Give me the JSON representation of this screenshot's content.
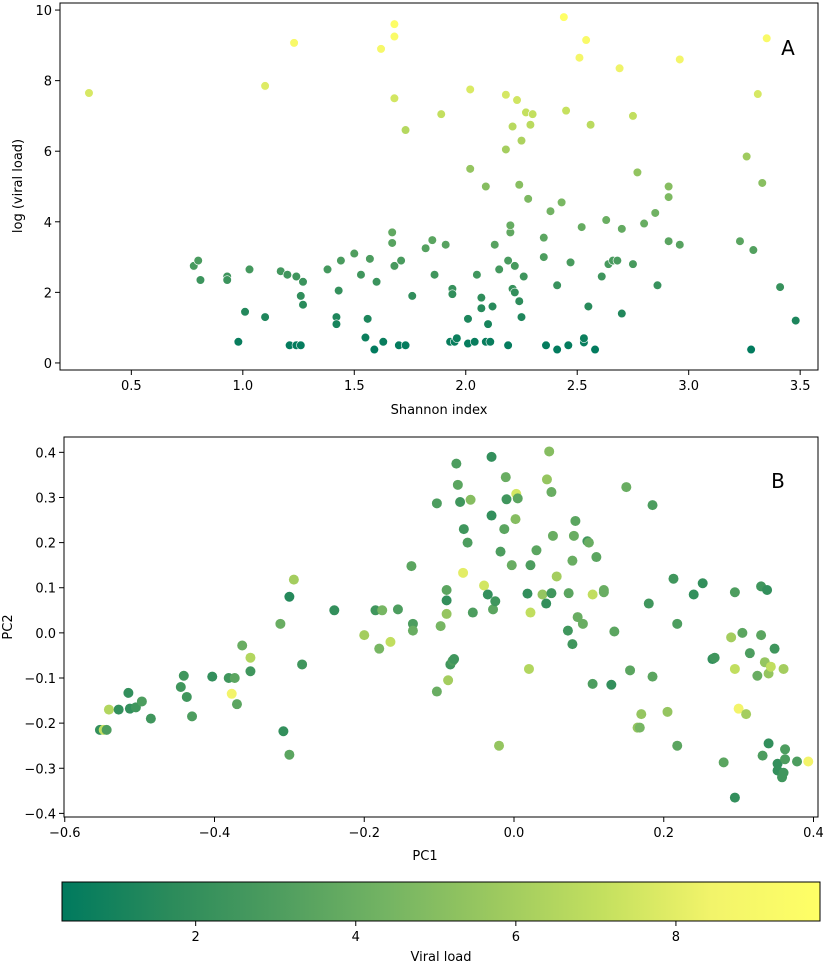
{
  "chart_data": [
    {
      "panel": "A",
      "type": "scatter",
      "xlabel": "Shannon index",
      "ylabel": "log (viral load)",
      "xlim": [
        0.18,
        3.58
      ],
      "ylim": [
        -0.2,
        10.2
      ],
      "xticks": [
        "0.5",
        "1.0",
        "1.5",
        "2.0",
        "2.5",
        "3.0",
        "3.5"
      ],
      "yticks": [
        "0",
        "2",
        "4",
        "6",
        "8",
        "10"
      ],
      "color_by": "y",
      "points": [
        [
          0.31,
          7.65
        ],
        [
          0.78,
          2.75
        ],
        [
          0.8,
          2.9
        ],
        [
          0.81,
          2.35
        ],
        [
          0.93,
          2.45
        ],
        [
          0.93,
          2.35
        ],
        [
          0.98,
          0.6
        ],
        [
          1.01,
          1.45
        ],
        [
          1.03,
          2.65
        ],
        [
          1.1,
          1.3
        ],
        [
          1.1,
          7.85
        ],
        [
          1.17,
          2.6
        ],
        [
          1.2,
          2.5
        ],
        [
          1.21,
          0.5
        ],
        [
          1.23,
          9.07
        ],
        [
          1.24,
          2.45
        ],
        [
          1.24,
          0.5
        ],
        [
          1.26,
          0.5
        ],
        [
          1.26,
          1.9
        ],
        [
          1.27,
          2.3
        ],
        [
          1.27,
          1.65
        ],
        [
          1.38,
          2.65
        ],
        [
          1.42,
          1.3
        ],
        [
          1.42,
          1.1
        ],
        [
          1.43,
          2.05
        ],
        [
          1.44,
          2.9
        ],
        [
          1.5,
          3.1
        ],
        [
          1.53,
          2.5
        ],
        [
          1.55,
          0.72
        ],
        [
          1.56,
          1.25
        ],
        [
          1.57,
          2.95
        ],
        [
          1.59,
          0.38
        ],
        [
          1.6,
          2.3
        ],
        [
          1.62,
          8.9
        ],
        [
          1.63,
          0.6
        ],
        [
          1.67,
          3.7
        ],
        [
          1.67,
          3.4
        ],
        [
          1.68,
          2.75
        ],
        [
          1.68,
          9.25
        ],
        [
          1.68,
          9.6
        ],
        [
          1.68,
          7.5
        ],
        [
          1.7,
          0.5
        ],
        [
          1.71,
          2.9
        ],
        [
          1.73,
          6.6
        ],
        [
          1.73,
          0.5
        ],
        [
          1.76,
          1.9
        ],
        [
          1.82,
          3.25
        ],
        [
          1.85,
          3.48
        ],
        [
          1.86,
          2.5
        ],
        [
          1.89,
          7.05
        ],
        [
          1.91,
          3.35
        ],
        [
          1.93,
          0.6
        ],
        [
          1.94,
          2.1
        ],
        [
          1.94,
          1.95
        ],
        [
          1.95,
          0.6
        ],
        [
          1.96,
          0.7
        ],
        [
          2.01,
          0.55
        ],
        [
          2.01,
          1.25
        ],
        [
          2.02,
          7.75
        ],
        [
          2.02,
          5.5
        ],
        [
          2.04,
          0.6
        ],
        [
          2.05,
          2.5
        ],
        [
          2.07,
          1.55
        ],
        [
          2.07,
          1.85
        ],
        [
          2.09,
          0.6
        ],
        [
          2.09,
          5.0
        ],
        [
          2.1,
          1.1
        ],
        [
          2.11,
          0.6
        ],
        [
          2.12,
          1.6
        ],
        [
          2.13,
          3.35
        ],
        [
          2.15,
          2.65
        ],
        [
          2.18,
          7.6
        ],
        [
          2.18,
          6.05
        ],
        [
          2.19,
          2.9
        ],
        [
          2.19,
          0.5
        ],
        [
          2.2,
          3.7
        ],
        [
          2.2,
          3.9
        ],
        [
          2.21,
          2.1
        ],
        [
          2.21,
          6.7
        ],
        [
          2.22,
          2.75
        ],
        [
          2.22,
          2.0
        ],
        [
          2.23,
          7.45
        ],
        [
          2.24,
          1.75
        ],
        [
          2.24,
          5.05
        ],
        [
          2.25,
          1.3
        ],
        [
          2.25,
          6.3
        ],
        [
          2.26,
          2.45
        ],
        [
          2.27,
          7.1
        ],
        [
          2.28,
          4.65
        ],
        [
          2.29,
          6.75
        ],
        [
          2.3,
          7.05
        ],
        [
          2.35,
          3.55
        ],
        [
          2.35,
          3.0
        ],
        [
          2.36,
          0.5
        ],
        [
          2.38,
          4.3
        ],
        [
          2.41,
          2.2
        ],
        [
          2.41,
          0.38
        ],
        [
          2.43,
          4.55
        ],
        [
          2.44,
          9.8
        ],
        [
          2.45,
          7.15
        ],
        [
          2.46,
          0.5
        ],
        [
          2.47,
          2.85
        ],
        [
          2.51,
          8.65
        ],
        [
          2.52,
          3.85
        ],
        [
          2.53,
          0.58
        ],
        [
          2.53,
          0.7
        ],
        [
          2.54,
          9.15
        ],
        [
          2.55,
          1.6
        ],
        [
          2.56,
          6.75
        ],
        [
          2.58,
          0.38
        ],
        [
          2.61,
          2.45
        ],
        [
          2.63,
          4.05
        ],
        [
          2.64,
          2.8
        ],
        [
          2.66,
          2.9
        ],
        [
          2.68,
          2.9
        ],
        [
          2.69,
          8.35
        ],
        [
          2.7,
          3.8
        ],
        [
          2.7,
          1.4
        ],
        [
          2.75,
          2.8
        ],
        [
          2.75,
          7.0
        ],
        [
          2.77,
          5.4
        ],
        [
          2.8,
          3.95
        ],
        [
          2.85,
          4.25
        ],
        [
          2.86,
          2.2
        ],
        [
          2.91,
          5.0
        ],
        [
          2.91,
          4.7
        ],
        [
          2.91,
          3.45
        ],
        [
          2.96,
          8.6
        ],
        [
          2.96,
          3.35
        ],
        [
          3.23,
          3.45
        ],
        [
          3.26,
          5.85
        ],
        [
          3.28,
          0.38
        ],
        [
          3.29,
          3.2
        ],
        [
          3.31,
          7.62
        ],
        [
          3.33,
          5.1
        ],
        [
          3.35,
          9.2
        ],
        [
          3.41,
          2.15
        ],
        [
          3.48,
          1.2
        ]
      ]
    },
    {
      "panel": "B",
      "type": "scatter",
      "xlabel": "PC1",
      "ylabel": "PC2",
      "xlim": [
        -0.601,
        0.406
      ],
      "ylim": [
        -0.408,
        0.434
      ],
      "xticks": [
        "−0.6",
        "−0.4",
        "−0.2",
        "0.0",
        "0.2",
        "0.4"
      ],
      "yticks": [
        "−0.4",
        "−0.3",
        "−0.2",
        "−0.1",
        "0.0",
        "0.1",
        "0.2",
        "0.3",
        "0.4"
      ],
      "points": [
        [
          -0.553,
          -0.215,
          2
        ],
        [
          -0.548,
          -0.215,
          7
        ],
        [
          -0.544,
          -0.215,
          3
        ],
        [
          -0.541,
          -0.17,
          6.5
        ],
        [
          -0.528,
          -0.17,
          2
        ],
        [
          -0.515,
          -0.133,
          2
        ],
        [
          -0.513,
          -0.168,
          2
        ],
        [
          -0.505,
          -0.165,
          2.5
        ],
        [
          -0.497,
          -0.152,
          3
        ],
        [
          -0.485,
          -0.19,
          2.5
        ],
        [
          -0.445,
          -0.12,
          2.5
        ],
        [
          -0.441,
          -0.095,
          2.5
        ],
        [
          -0.437,
          -0.142,
          2.5
        ],
        [
          -0.43,
          -0.185,
          3
        ],
        [
          -0.403,
          -0.097,
          2
        ],
        [
          -0.381,
          -0.1,
          2.5
        ],
        [
          -0.377,
          -0.135,
          8.5
        ],
        [
          -0.373,
          -0.1,
          3.5
        ],
        [
          -0.37,
          -0.158,
          3.5
        ],
        [
          -0.363,
          -0.028,
          4
        ],
        [
          -0.352,
          -0.055,
          6.5
        ],
        [
          -0.352,
          -0.085,
          2.5
        ],
        [
          -0.312,
          0.02,
          4
        ],
        [
          -0.308,
          -0.218,
          2
        ],
        [
          -0.294,
          0.118,
          6
        ],
        [
          -0.3,
          -0.27,
          3.5
        ],
        [
          -0.3,
          0.08,
          1.5
        ],
        [
          -0.283,
          -0.07,
          2.5
        ],
        [
          -0.24,
          0.05,
          2
        ],
        [
          -0.2,
          -0.005,
          6
        ],
        [
          -0.185,
          0.05,
          2.5
        ],
        [
          -0.18,
          -0.035,
          4.5
        ],
        [
          -0.176,
          0.05,
          4.5
        ],
        [
          -0.165,
          -0.02,
          7
        ],
        [
          -0.155,
          0.052,
          3
        ],
        [
          -0.137,
          0.148,
          3.5
        ],
        [
          -0.135,
          0.02,
          3
        ],
        [
          -0.135,
          0.005,
          4
        ],
        [
          -0.103,
          0.287,
          3
        ],
        [
          -0.103,
          -0.13,
          4
        ],
        [
          -0.098,
          0.015,
          4.5
        ],
        [
          -0.09,
          0.072,
          2
        ],
        [
          -0.09,
          0.095,
          3.5
        ],
        [
          -0.09,
          0.042,
          5.5
        ],
        [
          -0.088,
          -0.105,
          6
        ],
        [
          -0.085,
          -0.07,
          2.5
        ],
        [
          -0.082,
          -0.062,
          3
        ],
        [
          -0.08,
          -0.058,
          2.5
        ],
        [
          -0.077,
          0.375,
          3
        ],
        [
          -0.075,
          0.328,
          3.5
        ],
        [
          -0.072,
          0.29,
          2.5
        ],
        [
          -0.068,
          0.133,
          8
        ],
        [
          -0.067,
          0.23,
          2.5
        ],
        [
          -0.062,
          0.2,
          3
        ],
        [
          -0.058,
          0.295,
          5
        ],
        [
          -0.055,
          0.045,
          3
        ],
        [
          -0.04,
          0.105,
          7.5
        ],
        [
          -0.035,
          0.085,
          2
        ],
        [
          -0.03,
          0.39,
          2
        ],
        [
          -0.03,
          0.26,
          2
        ],
        [
          -0.028,
          0.052,
          3.5
        ],
        [
          -0.025,
          0.07,
          2.5
        ],
        [
          -0.02,
          -0.25,
          5.5
        ],
        [
          -0.018,
          0.18,
          3
        ],
        [
          -0.013,
          0.23,
          3.5
        ],
        [
          -0.011,
          0.345,
          4
        ],
        [
          -0.01,
          0.296,
          2.5
        ],
        [
          -0.003,
          0.15,
          4
        ],
        [
          0.003,
          0.308,
          7.5
        ],
        [
          0.002,
          0.252,
          5
        ],
        [
          0.005,
          0.298,
          3.5
        ],
        [
          0.018,
          0.087,
          2
        ],
        [
          0.02,
          -0.08,
          6.5
        ],
        [
          0.022,
          0.045,
          7
        ],
        [
          0.022,
          0.15,
          3
        ],
        [
          0.03,
          0.183,
          3.5
        ],
        [
          0.038,
          0.085,
          5.5
        ],
        [
          0.043,
          0.065,
          2
        ],
        [
          0.044,
          0.34,
          5.5
        ],
        [
          0.047,
          0.402,
          5
        ],
        [
          0.05,
          0.312,
          4
        ],
        [
          0.05,
          0.088,
          2.5
        ],
        [
          0.052,
          0.215,
          4
        ],
        [
          0.057,
          0.125,
          6
        ],
        [
          0.072,
          0.005,
          2.5
        ],
        [
          0.073,
          0.088,
          3.5
        ],
        [
          0.078,
          0.16,
          4
        ],
        [
          0.078,
          -0.025,
          2.5
        ],
        [
          0.08,
          0.215,
          4
        ],
        [
          0.082,
          0.248,
          3.5
        ],
        [
          0.085,
          0.035,
          4
        ],
        [
          0.092,
          0.02,
          4
        ],
        [
          0.098,
          0.203,
          2.5
        ],
        [
          0.1,
          0.2,
          4
        ],
        [
          0.105,
          -0.113,
          3
        ],
        [
          0.105,
          0.085,
          7
        ],
        [
          0.11,
          0.168,
          3.5
        ],
        [
          0.12,
          0.09,
          4
        ],
        [
          0.12,
          0.095,
          4
        ],
        [
          0.13,
          -0.115,
          2
        ],
        [
          0.134,
          0.003,
          3.5
        ],
        [
          0.15,
          0.323,
          4
        ],
        [
          0.155,
          -0.083,
          3.5
        ],
        [
          0.165,
          -0.21,
          5.5
        ],
        [
          0.168,
          -0.21,
          4.5
        ],
        [
          0.17,
          -0.18,
          5.5
        ],
        [
          0.18,
          0.065,
          2.5
        ],
        [
          0.185,
          0.283,
          3
        ],
        [
          0.185,
          -0.097,
          3.5
        ],
        [
          0.205,
          -0.175,
          5.5
        ],
        [
          0.213,
          0.12,
          2.5
        ],
        [
          0.218,
          0.02,
          3
        ],
        [
          0.218,
          -0.25,
          3.5
        ],
        [
          0.24,
          0.085,
          2
        ],
        [
          0.252,
          0.11,
          2
        ],
        [
          0.265,
          -0.058,
          2
        ],
        [
          0.268,
          -0.055,
          2.5
        ],
        [
          0.28,
          -0.287,
          3.5
        ],
        [
          0.29,
          -0.01,
          6
        ],
        [
          0.295,
          0.09,
          3
        ],
        [
          0.295,
          -0.365,
          2
        ],
        [
          0.295,
          -0.08,
          7
        ],
        [
          0.3,
          -0.168,
          8.5
        ],
        [
          0.305,
          0.0,
          3.5
        ],
        [
          0.31,
          -0.18,
          6
        ],
        [
          0.315,
          -0.045,
          3
        ],
        [
          0.325,
          -0.095,
          4
        ],
        [
          0.33,
          -0.005,
          3.5
        ],
        [
          0.33,
          0.103,
          2.5
        ],
        [
          0.332,
          -0.272,
          3
        ],
        [
          0.335,
          -0.065,
          5.5
        ],
        [
          0.338,
          0.095,
          2
        ],
        [
          0.34,
          -0.245,
          2
        ],
        [
          0.34,
          -0.09,
          5.5
        ],
        [
          0.343,
          -0.075,
          7
        ],
        [
          0.348,
          -0.035,
          2.5
        ],
        [
          0.352,
          -0.29,
          2
        ],
        [
          0.352,
          -0.305,
          2
        ],
        [
          0.358,
          -0.32,
          2.5
        ],
        [
          0.36,
          -0.08,
          6
        ],
        [
          0.36,
          -0.31,
          2.5
        ],
        [
          0.362,
          -0.258,
          3
        ],
        [
          0.362,
          -0.28,
          3
        ],
        [
          0.378,
          -0.285,
          3
        ],
        [
          0.393,
          -0.285,
          8.5
        ]
      ]
    }
  ],
  "colorbar": {
    "label": "Viral load",
    "range": [
      0.33,
      9.8
    ],
    "ticks": [
      "2",
      "4",
      "6",
      "8"
    ],
    "colors": [
      "#007a5e",
      "#2b8b5b",
      "#4e9d5f",
      "#74b463",
      "#9cc95f",
      "#c4e05f",
      "#f2f46a",
      "#ffff66"
    ]
  }
}
